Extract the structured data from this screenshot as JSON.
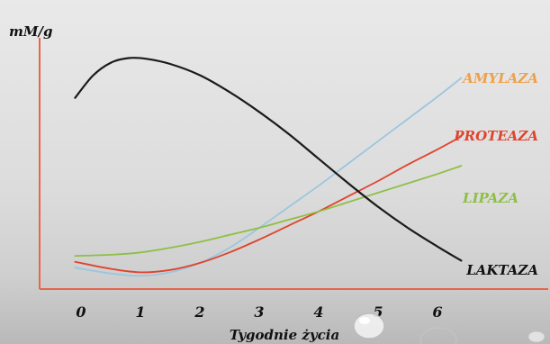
{
  "chart_data": {
    "type": "line",
    "ylabel": "mM/g",
    "xlabel": "Tygodnie życia",
    "x": [
      0,
      1,
      2,
      3,
      4,
      5,
      6
    ],
    "xlim": [
      -0.15,
      6.4
    ],
    "ylim": [
      0,
      10
    ],
    "grid": false,
    "legend": "inline labels at right end of each series",
    "series": [
      {
        "name": "LAKTAZA",
        "color": "#1a1a1a",
        "x": [
          -0.1,
          0.2,
          0.5,
          0.8,
          1.1,
          1.5,
          2,
          2.5,
          3,
          3.5,
          4,
          4.5,
          5,
          5.5,
          6,
          6.4
        ],
        "y": [
          8.05,
          9.0,
          9.55,
          9.75,
          9.72,
          9.5,
          9.02,
          8.3,
          7.45,
          6.5,
          5.45,
          4.4,
          3.4,
          2.5,
          1.7,
          1.1
        ]
      },
      {
        "name": "AMYLAZA",
        "color": "#9cc6de",
        "x": [
          -0.1,
          0.5,
          1,
          1.5,
          2,
          2.5,
          3,
          3.5,
          4,
          4.5,
          5,
          5.5,
          6,
          6.4
        ],
        "y": [
          0.8,
          0.55,
          0.45,
          0.6,
          1.0,
          1.65,
          2.5,
          3.4,
          4.3,
          5.25,
          6.2,
          7.15,
          8.1,
          8.9
        ]
      },
      {
        "name": "PROTEAZA",
        "color": "#e0432c",
        "x": [
          -0.1,
          0.5,
          1,
          1.5,
          2,
          2.5,
          3,
          3.5,
          4,
          4.5,
          5,
          5.5,
          6,
          6.4
        ],
        "y": [
          1.05,
          0.75,
          0.6,
          0.7,
          1.0,
          1.45,
          2.0,
          2.6,
          3.2,
          3.85,
          4.5,
          5.2,
          5.85,
          6.4
        ]
      },
      {
        "name": "LIPAZA",
        "color": "#8ebf45",
        "x": [
          -0.1,
          0.5,
          1,
          1.5,
          2,
          2.5,
          3,
          3.5,
          4,
          4.5,
          5,
          5.5,
          6,
          6.4
        ],
        "y": [
          1.3,
          1.35,
          1.45,
          1.65,
          1.9,
          2.2,
          2.5,
          2.85,
          3.2,
          3.6,
          4.0,
          4.4,
          4.8,
          5.15
        ]
      }
    ]
  }
}
